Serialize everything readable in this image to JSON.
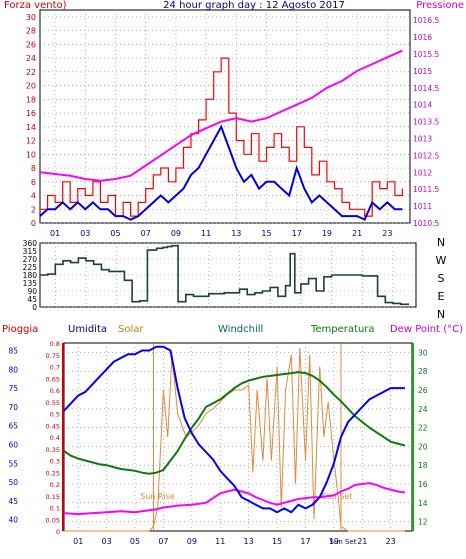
{
  "colors": {
    "wind": "#ff0000",
    "gust": "#ff0000",
    "avg_wind": "#0000dd",
    "pressure": "#ff00ff",
    "direction": "#1f3f3f",
    "humidity": "#0000ff",
    "solar": "#e08a3c",
    "windchill": "#006666",
    "temperature": "#117711",
    "dewpoint": "#ff00ff",
    "rain": "#cc0000",
    "grid": "#888888",
    "sun_marker": "#e08a3c"
  },
  "chart_data": [
    {
      "type": "line",
      "id": "wind",
      "title": "24 hour graph day : 12 Agosto 2017",
      "ylabel": "Forza vento)",
      "y2label": "Pressione",
      "xlim": [
        0,
        24.5
      ],
      "ylim": [
        0,
        31
      ],
      "y2lim": [
        1010.5,
        1016.8
      ],
      "xticks": [
        "01",
        "03",
        "05",
        "07",
        "09",
        "11",
        "13",
        "15",
        "17",
        "19",
        "21",
        "23"
      ],
      "yticks": [
        0,
        2,
        4,
        6,
        8,
        10,
        12,
        14,
        16,
        18,
        20,
        22,
        24,
        26,
        28,
        30
      ],
      "y2ticks": [
        "1010.5",
        "1011",
        "1011.5",
        "1012",
        "1012.5",
        "1013",
        "1013.5",
        "1014",
        "1014.5",
        "1015",
        "1015.5",
        "1016",
        "1016.5"
      ],
      "series": [
        {
          "role": "gust",
          "x": [
            0,
            0.5,
            1,
            1.5,
            2,
            2.5,
            3,
            3.5,
            4,
            4.5,
            5,
            5.5,
            6,
            6.5,
            7,
            7.5,
            8,
            8.5,
            9,
            9.5,
            10,
            10.5,
            11,
            11.5,
            12,
            12.5,
            13,
            13.5,
            14,
            14.5,
            15,
            15.5,
            16,
            16.5,
            17,
            17.5,
            18,
            18.5,
            19,
            19.5,
            20,
            20.5,
            21,
            21.5,
            22,
            22.5,
            23,
            23.5,
            24
          ],
          "values": [
            2,
            4,
            3,
            6,
            3,
            5,
            4,
            6,
            3,
            4,
            1,
            3,
            1,
            3,
            5,
            7,
            8,
            6,
            8,
            11,
            13,
            15,
            18,
            22,
            24,
            16,
            12,
            10,
            13,
            9,
            11,
            13,
            11,
            9,
            14,
            11,
            7,
            9,
            6,
            5,
            3,
            2,
            2,
            1,
            6,
            5,
            6,
            4,
            5
          ]
        },
        {
          "role": "avg_wind",
          "x": [
            0,
            0.5,
            1,
            1.5,
            2,
            2.5,
            3,
            3.5,
            4,
            4.5,
            5,
            5.5,
            6,
            6.5,
            7,
            7.5,
            8,
            8.5,
            9,
            9.5,
            10,
            10.5,
            11,
            11.5,
            12,
            12.5,
            13,
            13.5,
            14,
            14.5,
            15,
            15.5,
            16,
            16.5,
            17,
            17.5,
            18,
            18.5,
            19,
            19.5,
            20,
            20.5,
            21,
            21.5,
            22,
            22.5,
            23,
            23.5,
            24
          ],
          "values": [
            1,
            2,
            2,
            3,
            2,
            3,
            2,
            3,
            2,
            2,
            1,
            1,
            0.5,
            1,
            2,
            3,
            4,
            3,
            4,
            5,
            7,
            8,
            10,
            12,
            14,
            11,
            8,
            6,
            7,
            5,
            6,
            6,
            5,
            4,
            8,
            5,
            3,
            4,
            3,
            2,
            1,
            1,
            1,
            0.5,
            3,
            2,
            3,
            2,
            2
          ]
        },
        {
          "role": "pressure",
          "x": [
            0,
            1,
            2,
            3,
            4,
            5,
            6,
            7,
            8,
            9,
            10,
            11,
            12,
            13,
            14,
            15,
            16,
            17,
            18,
            19,
            20,
            21,
            22,
            23,
            24
          ],
          "values": [
            1012.0,
            1011.95,
            1011.9,
            1011.8,
            1011.75,
            1011.8,
            1011.9,
            1012.2,
            1012.5,
            1012.8,
            1013.1,
            1013.3,
            1013.5,
            1013.6,
            1013.5,
            1013.6,
            1013.8,
            1014.0,
            1014.2,
            1014.5,
            1014.7,
            1015.0,
            1015.2,
            1015.4,
            1015.6
          ]
        }
      ]
    },
    {
      "type": "line",
      "id": "direction",
      "xlim": [
        0,
        24.5
      ],
      "ylim": [
        0,
        360
      ],
      "yticks": [
        0,
        45,
        90,
        135,
        180,
        225,
        270,
        315,
        360
      ],
      "compass": [
        "N",
        "W",
        "S",
        "E",
        "N"
      ],
      "series": [
        {
          "role": "direction",
          "x": [
            0,
            0.5,
            1,
            1.5,
            2,
            2.5,
            3,
            3.5,
            4,
            4.5,
            5,
            5.5,
            6,
            6.5,
            7,
            7.3,
            7.6,
            8,
            8.3,
            8.6,
            9,
            9.5,
            10,
            11,
            12,
            13,
            13.5,
            14,
            14.5,
            15,
            15.5,
            16,
            16.3,
            16.6,
            17,
            17.5,
            18,
            18.5,
            19,
            20,
            21,
            22,
            22.5,
            23,
            23.5,
            24
          ],
          "values": [
            180,
            185,
            240,
            260,
            250,
            275,
            260,
            240,
            210,
            200,
            200,
            150,
            30,
            35,
            320,
            320,
            330,
            335,
            340,
            345,
            30,
            70,
            60,
            75,
            80,
            100,
            70,
            80,
            90,
            110,
            60,
            120,
            300,
            80,
            130,
            160,
            90,
            170,
            180,
            180,
            175,
            60,
            25,
            20,
            15,
            20
          ]
        }
      ]
    },
    {
      "type": "line",
      "id": "weather",
      "labels": {
        "rain": "Pioggia",
        "humidity": "Umidita",
        "solar": "Solar",
        "windchill": "Windchill",
        "temperature": "Temperatura",
        "dewpoint": "Dew Point (°C)"
      },
      "xlim": [
        0,
        24.5
      ],
      "xticks": [
        "01",
        "03",
        "05",
        "07",
        "09",
        "11",
        "13",
        "15",
        "17",
        "19",
        "21",
        "23"
      ],
      "x_extra_tick": "Sun Set",
      "humidity_lim": [
        37,
        87
      ],
      "humidity_ticks": [
        40,
        45,
        50,
        55,
        60,
        65,
        70,
        75,
        80,
        85
      ],
      "rain_lim": [
        0,
        0.8
      ],
      "rain_ticks": [
        "0",
        "0.05",
        "0.1",
        "0.15",
        "0.2",
        "0.25",
        "0.3",
        "0.35",
        "0.4",
        "0.45",
        "0.5",
        "0.55",
        "0.6",
        "0.65",
        "0.7",
        "0.75",
        "0.8"
      ],
      "temp_lim": [
        11,
        31
      ],
      "temp_ticks": [
        12,
        14,
        16,
        18,
        20,
        22,
        24,
        26,
        28,
        30
      ],
      "sunrise_x": 6.3,
      "sunset_x": 19.5,
      "sunrise_label": "Sun Rise",
      "sunset_label": "Sun Set",
      "series": [
        {
          "role": "humidity",
          "x": [
            0,
            0.5,
            1,
            1.5,
            2,
            2.5,
            3,
            3.5,
            4,
            4.5,
            5,
            5.5,
            6,
            6.5,
            7,
            7.5,
            8,
            8.5,
            9,
            9.5,
            10,
            10.5,
            11,
            11.5,
            12,
            12.5,
            13,
            13.5,
            14,
            14.5,
            15,
            15.5,
            16,
            16.5,
            17,
            17.5,
            18,
            18.5,
            19,
            19.5,
            20,
            20.5,
            21,
            21.5,
            22,
            22.5,
            23,
            23.5,
            24
          ],
          "values": [
            69,
            71,
            73,
            74,
            76,
            78,
            80,
            82,
            83,
            84,
            84,
            85,
            85,
            86,
            86,
            85,
            75,
            67,
            63,
            60,
            58,
            56,
            53,
            51,
            49,
            46,
            45,
            44,
            43,
            43,
            42,
            43,
            42,
            44,
            43,
            44,
            46,
            50,
            55,
            62,
            66,
            68,
            70,
            72,
            73,
            74,
            75,
            75,
            75
          ]
        },
        {
          "role": "solar",
          "x": [
            0,
            6,
            6.3,
            6.6,
            7,
            7.3,
            7.6,
            8,
            8.3,
            8.6,
            9,
            9.5,
            10,
            10.5,
            11,
            11.5,
            12,
            12.5,
            13,
            13.3,
            13.6,
            14,
            14.3,
            14.6,
            15,
            15.3,
            15.6,
            16,
            16.3,
            16.6,
            17,
            17.3,
            17.6,
            18,
            18.3,
            18.6,
            19,
            19.3,
            19.5,
            20,
            24
          ],
          "values": [
            0,
            0,
            0.02,
            0.1,
            0.6,
            0.4,
            0.75,
            0.5,
            0.45,
            0.4,
            0.42,
            0.45,
            0.5,
            0.52,
            0.55,
            0.58,
            0.6,
            0.6,
            0.62,
            0.25,
            0.6,
            0.3,
            0.65,
            0.3,
            0.7,
            0.1,
            0.6,
            0.75,
            0.2,
            0.78,
            0.3,
            0.75,
            0.05,
            0.7,
            0.4,
            0.55,
            0.3,
            0.15,
            0.02,
            0,
            0
          ]
        },
        {
          "role": "windchill",
          "x": [
            0,
            0.5,
            1,
            1.5,
            2,
            2.5,
            3,
            3.5,
            4,
            4.5,
            5,
            5.5,
            6,
            6.5,
            7,
            7.5,
            8,
            8.5,
            9,
            9.5,
            10,
            10.5,
            11,
            11.5,
            12,
            12.5,
            13,
            13.5,
            14,
            14.5,
            15,
            15.5,
            16,
            16.5,
            17,
            17.5,
            18,
            18.5,
            19,
            19.5,
            20,
            20.5,
            21,
            21.5,
            22,
            22.5,
            23,
            23.5,
            24
          ],
          "values": [
            19.5,
            19,
            18.7,
            18.5,
            18.3,
            18.1,
            18,
            17.8,
            17.6,
            17.5,
            17.4,
            17.2,
            17.1,
            17.2,
            17.5,
            18.5,
            19.5,
            20.8,
            22,
            23,
            24.2,
            24.6,
            25,
            25.6,
            26.2,
            26.7,
            27,
            27.2,
            27.4,
            27.5,
            27.6,
            27.7,
            27.8,
            27.9,
            27.8,
            27.5,
            27,
            26.3,
            25.5,
            24.8,
            24,
            23.2,
            22.6,
            22,
            21.5,
            21,
            20.5,
            20.3,
            20.1
          ]
        },
        {
          "role": "temperature",
          "x": [
            0,
            0.5,
            1,
            1.5,
            2,
            2.5,
            3,
            3.5,
            4,
            4.5,
            5,
            5.5,
            6,
            6.5,
            7,
            7.5,
            8,
            8.5,
            9,
            9.5,
            10,
            10.5,
            11,
            11.5,
            12,
            12.5,
            13,
            13.5,
            14,
            14.5,
            15,
            15.5,
            16,
            16.5,
            17,
            17.5,
            18,
            18.5,
            19,
            19.5,
            20,
            20.5,
            21,
            21.5,
            22,
            22.5,
            23,
            23.5,
            24
          ],
          "values": [
            19.5,
            19,
            18.7,
            18.5,
            18.3,
            18.1,
            18,
            17.8,
            17.6,
            17.5,
            17.4,
            17.2,
            17.1,
            17.2,
            17.5,
            18.5,
            19.5,
            20.8,
            22,
            23,
            24.2,
            24.6,
            25,
            25.6,
            26.2,
            26.7,
            27,
            27.2,
            27.4,
            27.5,
            27.6,
            27.7,
            27.8,
            27.9,
            27.8,
            27.5,
            27,
            26.3,
            25.5,
            24.8,
            24,
            23.2,
            22.6,
            22,
            21.5,
            21,
            20.5,
            20.3,
            20.1
          ]
        },
        {
          "role": "dewpoint",
          "x": [
            0,
            1,
            2,
            3,
            4,
            5,
            6,
            6.5,
            7,
            7.5,
            8,
            9,
            10,
            10.5,
            11,
            11.5,
            12,
            12.5,
            13,
            13.5,
            14,
            14.5,
            15,
            15.5,
            16,
            16.5,
            17,
            17.5,
            18,
            18.5,
            19,
            19.5,
            20,
            20.5,
            21,
            21.5,
            22,
            22.5,
            23,
            23.5,
            24
          ],
          "values": [
            12.9,
            12.8,
            12.9,
            13,
            13.1,
            13,
            13.2,
            13.3,
            13.5,
            13.6,
            13.7,
            13.8,
            14,
            14.5,
            15,
            15.2,
            15.4,
            15.2,
            15,
            14.6,
            14.3,
            14,
            13.8,
            14,
            14.2,
            14.4,
            14.5,
            14.6,
            14.6,
            14.7,
            14.8,
            15.2,
            15.5,
            15.9,
            16.0,
            16.1,
            15.9,
            15.6,
            15.4,
            15.2,
            15.1
          ]
        }
      ]
    }
  ]
}
